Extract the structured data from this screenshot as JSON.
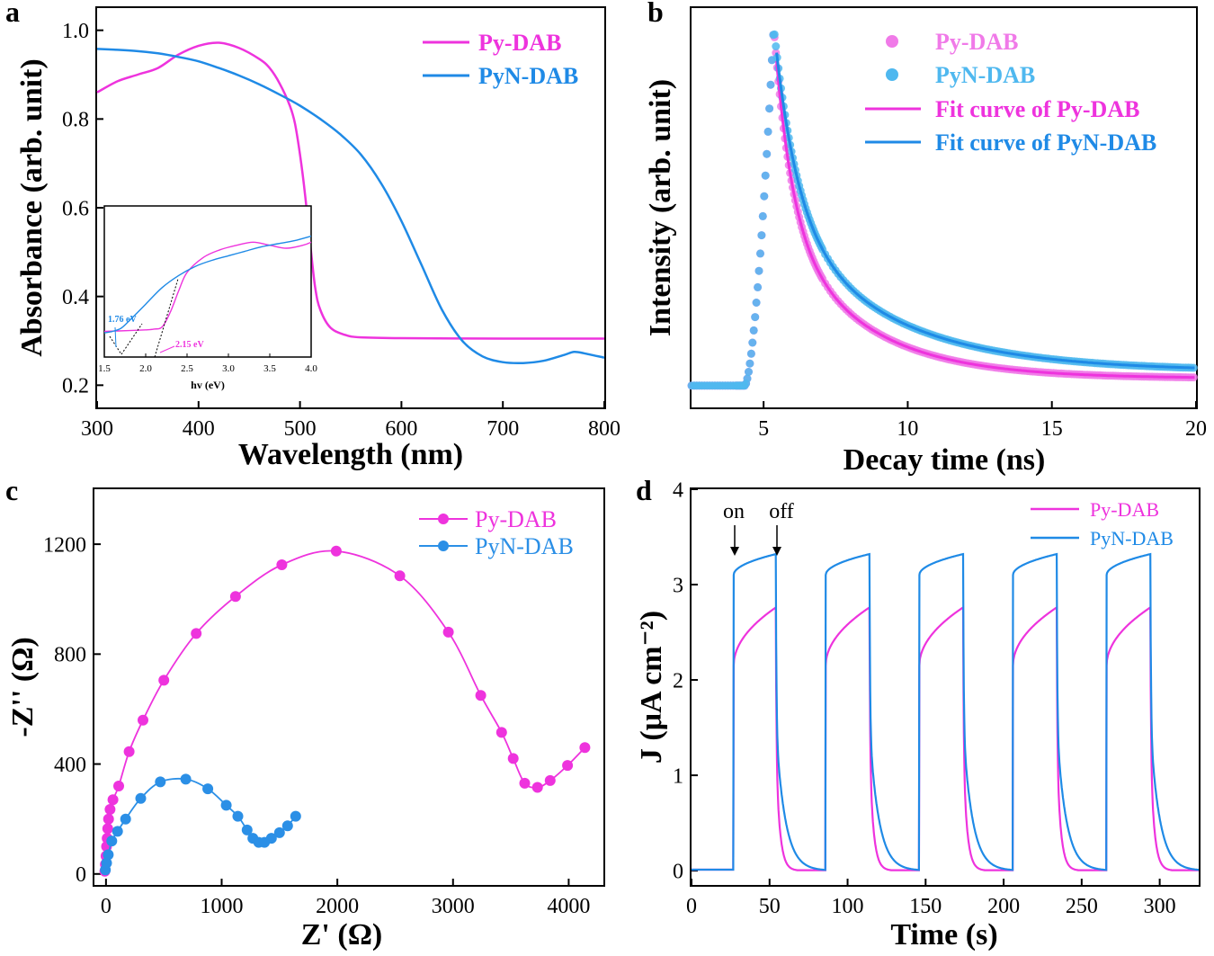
{
  "colors": {
    "py": "#ee33dd",
    "pyn": "#1f8ae6",
    "pyn_light": "#4fb8ef",
    "pyn_marker": "#2b8fe6",
    "py_light": "#f07ae8",
    "axis": "#000000"
  },
  "chart_data": [
    {
      "id": "a",
      "type": "line",
      "panel_label": "a",
      "title": "",
      "xlabel": "Wavelength (nm)",
      "ylabel": "Absorbance (arb. unit)",
      "xlim": [
        300,
        800
      ],
      "ylim": [
        0.15,
        1.05
      ],
      "xticks": [
        300,
        400,
        500,
        600,
        700,
        800
      ],
      "yticks": [
        0.2,
        0.4,
        0.6,
        0.8,
        1.0
      ],
      "xtick_labels": [
        "300",
        "400",
        "500",
        "600",
        "700",
        "800"
      ],
      "ytick_labels": [
        "0.2",
        "0.4",
        "0.6",
        "0.8",
        "1.0"
      ],
      "legend": [
        "Py-DAB",
        "PyN-DAB"
      ],
      "series": [
        {
          "name": "Py-DAB",
          "color_key": "py",
          "x": [
            300,
            320,
            340,
            360,
            380,
            400,
            420,
            440,
            460,
            470,
            480,
            490,
            495,
            500,
            505,
            510,
            515,
            520,
            530,
            545,
            560,
            600,
            700,
            800
          ],
          "y": [
            0.86,
            0.885,
            0.9,
            0.915,
            0.945,
            0.965,
            0.972,
            0.96,
            0.935,
            0.915,
            0.88,
            0.83,
            0.79,
            0.72,
            0.63,
            0.52,
            0.42,
            0.37,
            0.33,
            0.313,
            0.308,
            0.306,
            0.305,
            0.305
          ]
        },
        {
          "name": "PyN-DAB",
          "color_key": "pyn",
          "x": [
            300,
            320,
            340,
            360,
            380,
            400,
            420,
            440,
            460,
            480,
            500,
            520,
            540,
            560,
            580,
            600,
            620,
            640,
            660,
            680,
            700,
            720,
            740,
            760,
            770,
            780,
            800
          ],
          "y": [
            0.958,
            0.956,
            0.953,
            0.948,
            0.94,
            0.93,
            0.915,
            0.898,
            0.878,
            0.855,
            0.83,
            0.8,
            0.765,
            0.72,
            0.655,
            0.57,
            0.47,
            0.37,
            0.3,
            0.265,
            0.252,
            0.25,
            0.255,
            0.268,
            0.275,
            0.272,
            0.262
          ]
        }
      ],
      "inset": {
        "xlabel": "hv (eV)",
        "xlim": [
          1.5,
          4.0
        ],
        "ylim": [
          0.0,
          1.0
        ],
        "xticks": [
          1.5,
          2.0,
          2.5,
          3.0,
          3.5,
          4.0
        ],
        "xtick_labels": [
          "1.5",
          "2.0",
          "2.5",
          "3.0",
          "3.5",
          "4.0"
        ],
        "annotations": [
          "1.76 eV",
          "2.15 eV"
        ],
        "series": [
          {
            "name": "Py-DAB",
            "color_key": "py",
            "x": [
              1.5,
              1.8,
              2.0,
              2.1,
              2.2,
              2.3,
              2.4,
              2.5,
              2.7,
              2.9,
              3.1,
              3.3,
              3.5,
              3.7,
              3.9,
              4.0
            ],
            "y": [
              0.17,
              0.175,
              0.18,
              0.185,
              0.2,
              0.3,
              0.44,
              0.56,
              0.66,
              0.71,
              0.74,
              0.76,
              0.74,
              0.72,
              0.74,
              0.76
            ]
          },
          {
            "name": "PyN-DAB",
            "color_key": "pyn",
            "x": [
              1.5,
              1.6,
              1.7,
              1.8,
              2.0,
              2.2,
              2.4,
              2.6,
              2.8,
              3.0,
              3.2,
              3.4,
              3.6,
              3.8,
              4.0
            ],
            "y": [
              0.16,
              0.17,
              0.19,
              0.24,
              0.35,
              0.46,
              0.54,
              0.6,
              0.64,
              0.67,
              0.7,
              0.73,
              0.75,
              0.77,
              0.8
            ]
          }
        ]
      }
    },
    {
      "id": "b",
      "type": "scatter",
      "panel_label": "b",
      "title": "",
      "xlabel": "Decay time (ns)",
      "ylabel": "Intensity (arb. unit)",
      "xlim": [
        2.5,
        20
      ],
      "ylim": [
        -0.05,
        1.05
      ],
      "xticks": [
        5,
        10,
        15,
        20
      ],
      "xtick_labels": [
        "5",
        "10",
        "15",
        "20"
      ],
      "legend": [
        "Py-DAB",
        "PyN-DAB",
        "Fit curve of Py-DAB",
        "Fit curve of PyN-DAB"
      ],
      "peak_time": 5.35,
      "baseline": 0.01,
      "series": [
        {
          "name": "Py-DAB",
          "kind": "points",
          "color_key": "py_light",
          "tau": 1.1,
          "tail": 0.03
        },
        {
          "name": "PyN-DAB",
          "kind": "points",
          "color_key": "pyn_light",
          "tau": 1.45,
          "tail": 0.05
        },
        {
          "name": "Fit curve of Py-DAB",
          "kind": "line",
          "color_key": "py",
          "tau": 1.1,
          "tail": 0.03
        },
        {
          "name": "Fit curve of PyN-DAB",
          "kind": "line",
          "color_key": "pyn",
          "tau": 1.45,
          "tail": 0.05
        }
      ]
    },
    {
      "id": "c",
      "type": "line",
      "panel_label": "c",
      "title": "",
      "xlabel": "Z' (Ω)",
      "ylabel": "-Z'' (Ω)",
      "xlim": [
        -100,
        4300
      ],
      "ylim": [
        -40,
        1400
      ],
      "xticks": [
        0,
        1000,
        2000,
        3000,
        4000
      ],
      "yticks": [
        0,
        400,
        800,
        1200
      ],
      "xtick_labels": [
        "0",
        "1000",
        "2000",
        "3000",
        "4000"
      ],
      "ytick_labels": [
        "0",
        "400",
        "800",
        "1200"
      ],
      "legend": [
        "Py-DAB",
        "PyN-DAB"
      ],
      "series": [
        {
          "name": "Py-DAB",
          "color_key": "py",
          "x": [
            -10,
            -5,
            0,
            5,
            10,
            15,
            22,
            35,
            60,
            110,
            200,
            320,
            500,
            780,
            1120,
            1520,
            1990,
            2540,
            2960,
            3240,
            3420,
            3520,
            3620,
            3730,
            3840,
            3990,
            4140
          ],
          "y": [
            10,
            35,
            65,
            100,
            130,
            165,
            200,
            235,
            270,
            320,
            445,
            560,
            705,
            875,
            1010,
            1125,
            1175,
            1085,
            880,
            650,
            515,
            420,
            330,
            315,
            340,
            395,
            460
          ]
        },
        {
          "name": "PyN-DAB",
          "color_key": "pyn",
          "x": [
            -5,
            5,
            20,
            50,
            100,
            170,
            300,
            470,
            690,
            880,
            1040,
            1140,
            1220,
            1270,
            1320,
            1370,
            1430,
            1500,
            1570,
            1640
          ],
          "y": [
            15,
            40,
            70,
            120,
            155,
            200,
            275,
            335,
            345,
            310,
            250,
            210,
            160,
            130,
            115,
            115,
            130,
            150,
            175,
            210
          ]
        }
      ]
    },
    {
      "id": "d",
      "type": "line",
      "panel_label": "d",
      "title": "",
      "xlabel": "Time (s)",
      "ylabel": "J (μA cm⁻²)",
      "xlim": [
        0,
        325
      ],
      "ylim": [
        -0.15,
        4.0
      ],
      "xticks": [
        0,
        50,
        100,
        150,
        200,
        250,
        300
      ],
      "yticks": [
        0,
        1,
        2,
        3,
        4
      ],
      "xtick_labels": [
        "0",
        "50",
        "100",
        "150",
        "200",
        "250",
        "300"
      ],
      "ytick_labels": [
        "0",
        "1",
        "2",
        "3",
        "4"
      ],
      "legend": [
        "Py-DAB",
        "PyN-DAB"
      ],
      "annotations": [
        "on",
        "off"
      ],
      "cycles_on_off_s": [
        [
          27,
          54
        ],
        [
          86,
          114
        ],
        [
          146,
          174
        ],
        [
          206,
          234
        ],
        [
          266,
          294
        ]
      ],
      "series": [
        {
          "name": "Py-DAB",
          "color_key": "py",
          "jump": 2.15,
          "plateau": 2.76,
          "decay_tau_s": 2.5
        },
        {
          "name": "PyN-DAB",
          "color_key": "pyn",
          "jump": 3.1,
          "plateau": 3.32,
          "decay_tau_s": 6.0
        }
      ]
    }
  ]
}
